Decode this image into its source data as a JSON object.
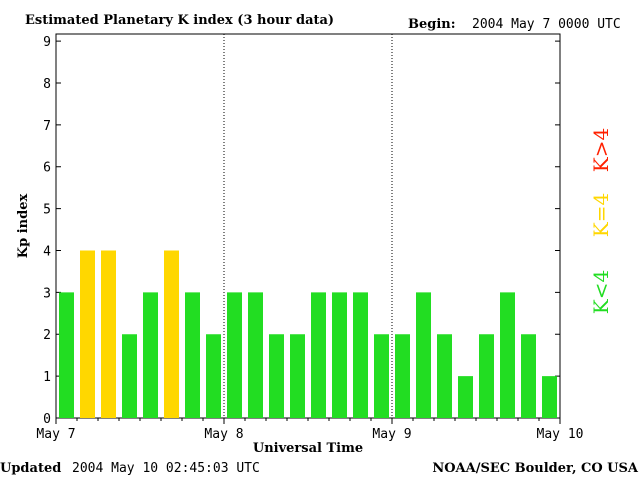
{
  "header": {
    "title": "Estimated Planetary K index (3 hour data)",
    "begin_label": "Begin:",
    "begin_value": "2004 May 7 0000 UTC"
  },
  "footer": {
    "updated_label": "Updated",
    "updated_value": "2004 May 10 02:45:03 UTC",
    "source": "NOAA/SEC Boulder, CO USA"
  },
  "legend": [
    {
      "label": "K>4",
      "color": "#ff2000"
    },
    {
      "label": "K=4",
      "color": "#ffd700"
    },
    {
      "label": "K<4",
      "color": "#22dd22"
    }
  ],
  "chart_data": {
    "type": "bar",
    "title": "Estimated Planetary K index (3 hour data)",
    "xlabel": "Universal Time",
    "ylabel": "Kp index",
    "ylim": [
      0,
      9
    ],
    "yticks": [
      "0",
      "1",
      "2",
      "3",
      "4",
      "5",
      "6",
      "7",
      "8",
      "9"
    ],
    "xtick_labels": [
      "May 7",
      "May 8",
      "May 9",
      "May 10"
    ],
    "day_separators": [
      "May 8",
      "May 9"
    ],
    "values": [
      3,
      4,
      4,
      2,
      3,
      4,
      3,
      2,
      3,
      3,
      2,
      2,
      3,
      3,
      3,
      2,
      2,
      3,
      2,
      1,
      2,
      3,
      2,
      1
    ],
    "color_rule": {
      "below_4": "#22dd22",
      "equal_4": "#ffd700",
      "above_4": "#ff2000"
    }
  }
}
